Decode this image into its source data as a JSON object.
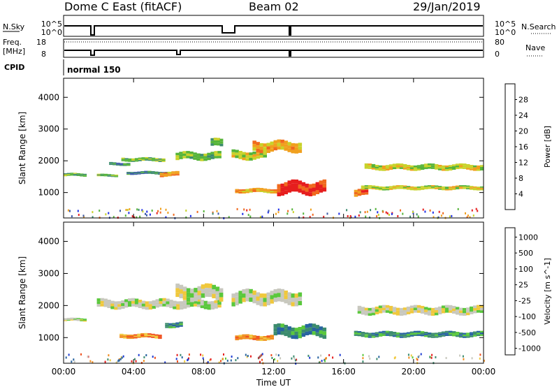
{
  "header": {
    "title": "Dome C East (fitACF)",
    "beam": "Beam 02",
    "date": "29/Jan/2019"
  },
  "panel_labels": {
    "nsky": "N.Sky",
    "nsearch": "N.Search",
    "freq_line1": "Freq.",
    "freq_line2": "[MHz]",
    "nave": "Nave",
    "cpid": "CPID",
    "cpid_value": "normal 150",
    "nsky_ticks": [
      "10^5",
      "10^0"
    ],
    "nsearch_ticks": [
      "10^5",
      "10^0"
    ],
    "freq_ticks": [
      "18",
      "8"
    ],
    "nave_ticks": [
      "80",
      "0"
    ]
  },
  "chart_data": [
    {
      "type": "heatmap",
      "name": "power",
      "ylabel": "Slant Range [km]",
      "yticks": [
        1000,
        2000,
        3000,
        4000
      ],
      "ylim": [
        200,
        4600
      ],
      "xlim": [
        0,
        24
      ],
      "xticks": [
        "00:00",
        "04:00",
        "08:00",
        "12:00",
        "16:00",
        "20:00",
        "00:00"
      ],
      "colorbar_label": "Power [dB]",
      "colorbar_ticks": [
        "4",
        "8",
        "12",
        "16",
        "20",
        "24",
        "28"
      ],
      "colors": [
        "#1e2ee6",
        "#3c5aaa",
        "#3c8c6e",
        "#56b43a",
        "#c8d22a",
        "#f0a01e",
        "#f06a1e",
        "#e61e1e"
      ],
      "bands": [
        {
          "t0": 0.0,
          "t1": 1.3,
          "r": 1560,
          "w": 90,
          "val": 3
        },
        {
          "t0": 1.9,
          "t1": 3.1,
          "r": 1540,
          "w": 80,
          "val": 3
        },
        {
          "t0": 2.6,
          "t1": 3.8,
          "r": 1900,
          "w": 90,
          "val": 2
        },
        {
          "t0": 3.3,
          "t1": 5.8,
          "r": 2040,
          "w": 110,
          "val": 3
        },
        {
          "t0": 3.6,
          "t1": 6.0,
          "r": 1620,
          "w": 90,
          "val": 2
        },
        {
          "t0": 5.5,
          "t1": 6.6,
          "r": 1580,
          "w": 140,
          "val": 5
        },
        {
          "t0": 6.4,
          "t1": 9.0,
          "r": 2150,
          "w": 230,
          "val": 3
        },
        {
          "t0": 8.4,
          "t1": 9.1,
          "r": 2560,
          "w": 240,
          "val": 3
        },
        {
          "t0": 9.6,
          "t1": 11.6,
          "r": 2180,
          "w": 260,
          "val": 4
        },
        {
          "t0": 10.8,
          "t1": 13.6,
          "r": 2450,
          "w": 320,
          "val": 5
        },
        {
          "t0": 9.8,
          "t1": 12.2,
          "r": 1060,
          "w": 130,
          "val": 5
        },
        {
          "t0": 12.2,
          "t1": 15.0,
          "r": 1150,
          "w": 380,
          "val": 7
        },
        {
          "t0": 16.6,
          "t1": 17.4,
          "r": 1000,
          "w": 220,
          "val": 6
        },
        {
          "t0": 17.0,
          "t1": 24.0,
          "r": 1150,
          "w": 120,
          "val": 4
        },
        {
          "t0": 17.2,
          "t1": 24.0,
          "r": 1800,
          "w": 170,
          "val": 4
        }
      ]
    },
    {
      "type": "heatmap",
      "name": "velocity",
      "ylabel": "Slant Range [km]",
      "yticks": [
        1000,
        2000,
        3000,
        4000
      ],
      "ylim": [
        200,
        4600
      ],
      "xlim": [
        0,
        24
      ],
      "xticks": [
        "00:00",
        "04:00",
        "08:00",
        "12:00",
        "16:00",
        "20:00",
        "00:00"
      ],
      "xlabel": "Time UT",
      "colorbar_label": "Velocity [m s^-1]",
      "colorbar_ticks": [
        "1000",
        "500",
        "100",
        "25",
        "-25",
        "-100",
        "-500",
        "-1000"
      ],
      "colors": [
        "#1e3cd2",
        "#2864a0",
        "#3c8c6e",
        "#5ac83c",
        "#c8c8be",
        "#f0c83c",
        "#f08c1e",
        "#f0501e",
        "#e61e1e"
      ],
      "bands": [
        {
          "t0": 0.0,
          "t1": 1.3,
          "r": 1560,
          "w": 90,
          "val": 4
        },
        {
          "t0": 1.9,
          "t1": 9.0,
          "r": 2050,
          "w": 260,
          "val": 4
        },
        {
          "t0": 6.4,
          "t1": 9.1,
          "r": 2400,
          "w": 420,
          "val": 4
        },
        {
          "t0": 3.2,
          "t1": 5.6,
          "r": 1050,
          "w": 130,
          "val": 6
        },
        {
          "t0": 5.8,
          "t1": 6.8,
          "r": 1400,
          "w": 160,
          "val": 2
        },
        {
          "t0": 9.6,
          "t1": 13.6,
          "r": 2250,
          "w": 400,
          "val": 4
        },
        {
          "t0": 9.8,
          "t1": 12.0,
          "r": 1000,
          "w": 150,
          "val": 6
        },
        {
          "t0": 12.0,
          "t1": 15.0,
          "r": 1200,
          "w": 350,
          "val": 2
        },
        {
          "t0": 16.6,
          "t1": 24.0,
          "r": 1100,
          "w": 160,
          "val": 2
        },
        {
          "t0": 16.8,
          "t1": 24.0,
          "r": 1850,
          "w": 240,
          "val": 4
        }
      ]
    }
  ]
}
